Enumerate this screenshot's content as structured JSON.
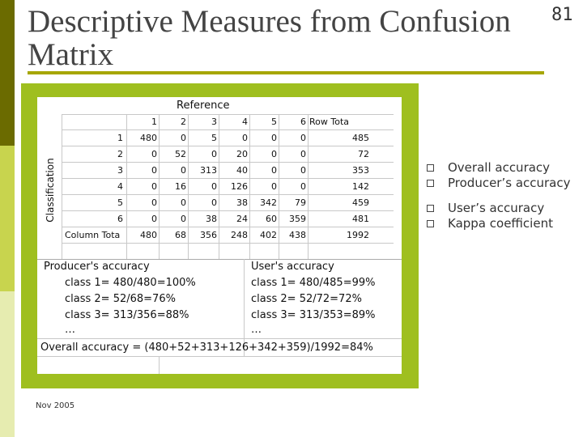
{
  "slide": {
    "title": "Descriptive Measures from Confusion Matrix",
    "number": "81",
    "footer": "Nov 2005"
  },
  "bullets": [
    "Overall accuracy",
    "Producer’s accuracy",
    "User’s accuracy",
    "Kappa coefficient"
  ],
  "figure": {
    "header_reference": "Reference",
    "header_classification": "Classification",
    "column_headers": [
      "1",
      "2",
      "3",
      "4",
      "5",
      "6",
      "Row Tota"
    ],
    "rows": [
      {
        "label": "1",
        "values": [
          "480",
          "0",
          "5",
          "0",
          "0",
          "0",
          "485"
        ]
      },
      {
        "label": "2",
        "values": [
          "0",
          "52",
          "0",
          "20",
          "0",
          "0",
          "72"
        ]
      },
      {
        "label": "3",
        "values": [
          "0",
          "0",
          "313",
          "40",
          "0",
          "0",
          "353"
        ]
      },
      {
        "label": "4",
        "values": [
          "0",
          "16",
          "0",
          "126",
          "0",
          "0",
          "142"
        ]
      },
      {
        "label": "5",
        "values": [
          "0",
          "0",
          "0",
          "38",
          "342",
          "79",
          "459"
        ]
      },
      {
        "label": "6",
        "values": [
          "0",
          "0",
          "38",
          "24",
          "60",
          "359",
          "481"
        ]
      },
      {
        "label": "Column Tota",
        "values": [
          "480",
          "68",
          "356",
          "248",
          "402",
          "438",
          "1992"
        ]
      }
    ],
    "producers_title": "Producer's accuracy",
    "producers": [
      "class 1= 480/480=100%",
      "class 2= 52/68=76%",
      "class 3= 313/356=88%",
      "…"
    ],
    "users_title": "User's accuracy",
    "users": [
      "class 1= 480/485=99%",
      "class 2= 52/72=72%",
      "class 3= 313/353=89%",
      "…"
    ],
    "overall": "Overall accuracy = (480+52+313+126+342+359)/1992=84%"
  }
}
